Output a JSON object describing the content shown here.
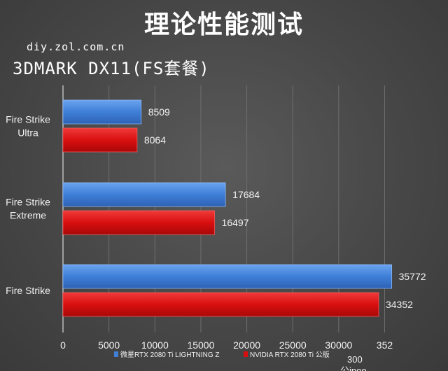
{
  "title": "理论性能测试",
  "site": "diy.zol.com.cn",
  "subtitle": "3DMARK DX11(FS套餐)",
  "chart_data": {
    "type": "bar",
    "orientation": "horizontal",
    "categories": [
      "Fire Strike Ultra",
      "Fire Strike Extreme",
      "Fire Strike"
    ],
    "category_lines": [
      [
        "Fire Strike",
        "Ultra"
      ],
      [
        "Fire Strike",
        "Extreme"
      ],
      [
        "Fire Strike"
      ]
    ],
    "series": [
      {
        "name": "微星RTX 2080 Ti LIGHTNING Z",
        "color": "#3f7fd8",
        "values": [
          8509,
          17684,
          35772
        ]
      },
      {
        "name": "NVIDIA RTX 2080 Ti 公版",
        "color": "#d90f0f",
        "values": [
          8064,
          16497,
          34352
        ]
      }
    ],
    "x_ticks": [
      "0",
      "5000",
      "10000",
      "15000",
      "20000",
      "25000",
      "30000",
      "352"
    ],
    "xlim": [
      0,
      39000
    ],
    "grid": true,
    "legend": "bottom",
    "overlay_text": [
      "300",
      "公ipoo"
    ]
  }
}
